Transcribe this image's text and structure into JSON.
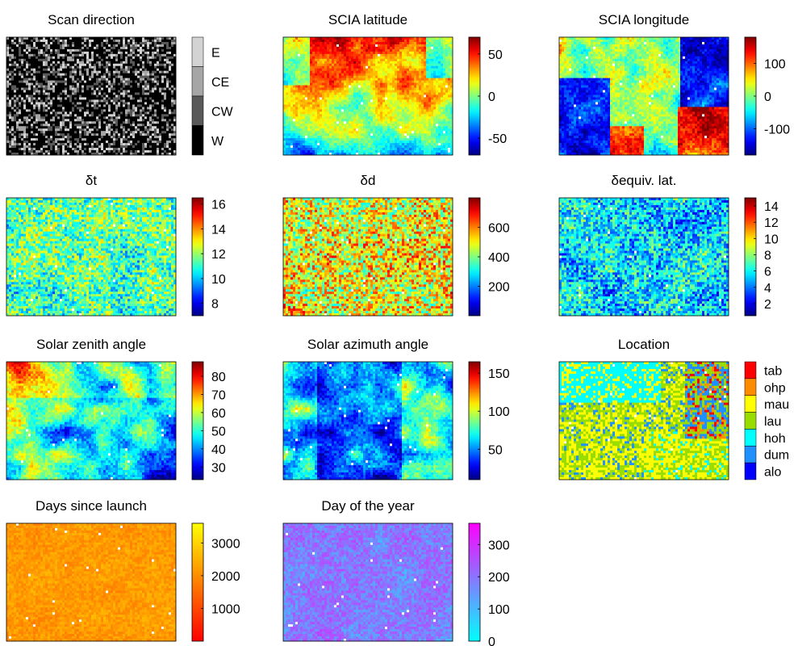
{
  "chart_data": [
    {
      "id": "scan-direction",
      "type": "heatmap",
      "title": "Scan direction",
      "colormap": "gray",
      "pattern": "noise",
      "colorbar": {
        "kind": "categorical",
        "categories": [
          "E",
          "CE",
          "CW",
          "W"
        ],
        "colors": [
          "#d3d3d3",
          "#a6a6a6",
          "#595959",
          "#000000"
        ]
      }
    },
    {
      "id": "scia-latitude",
      "type": "heatmap",
      "title": "SCIA latitude",
      "colormap": "jet",
      "pattern": "latitude",
      "colorbar": {
        "kind": "continuous",
        "range": [
          -70,
          70
        ],
        "ticks": [
          -50,
          0,
          50
        ]
      }
    },
    {
      "id": "scia-longitude",
      "type": "heatmap",
      "title": "SCIA longitude",
      "colormap": "jet",
      "pattern": "longitude",
      "colorbar": {
        "kind": "continuous",
        "range": [
          -180,
          180
        ],
        "ticks": [
          -100,
          0,
          100
        ]
      }
    },
    {
      "id": "delta-t",
      "type": "heatmap",
      "title": "δt",
      "colormap": "jet",
      "pattern": "noise-mid",
      "colorbar": {
        "kind": "continuous",
        "range": [
          7,
          16.5
        ],
        "ticks": [
          8,
          10,
          12,
          14,
          16
        ]
      }
    },
    {
      "id": "delta-d",
      "type": "heatmap",
      "title": "δd",
      "colormap": "jet",
      "pattern": "noise-high",
      "colorbar": {
        "kind": "continuous",
        "range": [
          0,
          800
        ],
        "ticks": [
          200,
          400,
          600
        ]
      }
    },
    {
      "id": "delta-equiv-lat",
      "type": "heatmap",
      "title": "δequiv. lat.",
      "colormap": "jet",
      "pattern": "noise-low",
      "colorbar": {
        "kind": "continuous",
        "range": [
          0.5,
          15
        ],
        "ticks": [
          2,
          4,
          6,
          8,
          10,
          12,
          14
        ]
      }
    },
    {
      "id": "solar-zenith-angle",
      "type": "heatmap",
      "title": "Solar zenith angle",
      "colormap": "jet",
      "pattern": "zenith",
      "colorbar": {
        "kind": "continuous",
        "range": [
          23,
          88
        ],
        "ticks": [
          30,
          40,
          50,
          60,
          70,
          80
        ]
      }
    },
    {
      "id": "solar-azimuth-angle",
      "type": "heatmap",
      "title": "Solar azimuth angle",
      "colormap": "jet",
      "pattern": "azimuth",
      "colorbar": {
        "kind": "continuous",
        "range": [
          10,
          165
        ],
        "ticks": [
          50,
          100,
          150
        ]
      }
    },
    {
      "id": "location",
      "type": "heatmap",
      "title": "Location",
      "colormap": "categorical",
      "pattern": "location",
      "colorbar": {
        "kind": "categorical",
        "categories": [
          "tab",
          "ohp",
          "mau",
          "lau",
          "hoh",
          "dum",
          "alo"
        ],
        "colors": [
          "#ff0000",
          "#ff8c00",
          "#ffff00",
          "#99dd00",
          "#00ffff",
          "#1e90ff",
          "#0000ff"
        ]
      }
    },
    {
      "id": "days-since-launch",
      "type": "heatmap",
      "title": "Days since launch",
      "colormap": "autumn",
      "pattern": "days",
      "colorbar": {
        "kind": "continuous",
        "range": [
          0,
          3600
        ],
        "ticks": [
          1000,
          2000,
          3000
        ]
      }
    },
    {
      "id": "day-of-the-year",
      "type": "heatmap",
      "title": "Day of the year",
      "colormap": "cool",
      "pattern": "doy",
      "colorbar": {
        "kind": "continuous",
        "range": [
          0,
          366
        ],
        "ticks": [
          0,
          100,
          200,
          300
        ]
      }
    }
  ]
}
